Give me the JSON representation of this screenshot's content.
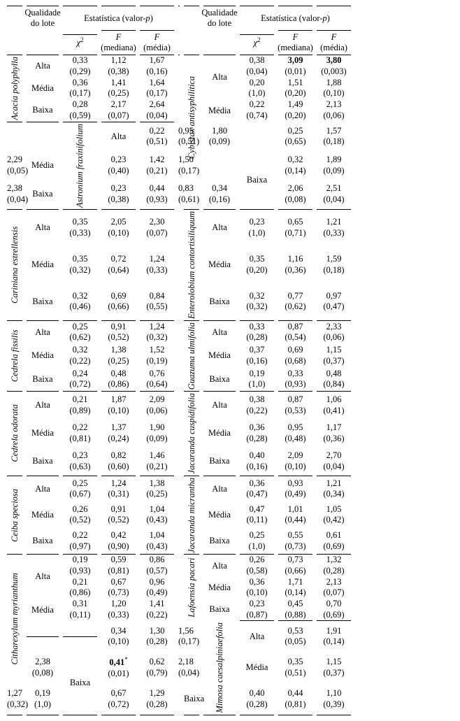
{
  "headers": {
    "qualidade": "Qualidade",
    "do_lote": "do lote",
    "estatistica": "Estatística (valor-",
    "p_it": "p",
    "close": ")",
    "chi": "χ",
    "sq": "2",
    "f": "F",
    "mediana": "(mediana)",
    "media": "(média)"
  },
  "qual_labels": {
    "alta": "Alta",
    "media": "Média",
    "baixa": "Baixa"
  },
  "left": [
    {
      "name": "Acacia polyphylla",
      "rows": [
        [
          "0,33",
          "(0,29)",
          "1,12",
          "(0,38)",
          "1,67",
          "(0,16)"
        ],
        [
          "0,36",
          "(0,17)",
          "1,41",
          "(0,25)",
          "1,64",
          "(0,17)"
        ],
        [
          "0,28",
          "(0,59)",
          "2,17",
          "(0,07)",
          "2,64",
          "(0,04)"
        ]
      ]
    },
    {
      "name": "Astronium fraxinifolium",
      "rows": [
        [
          "0,22",
          "(0,51)",
          "0,95",
          "(0,51)",
          "1,80",
          "(0,09)"
        ],
        [
          "0,23",
          "(0,40)",
          "1,42",
          "(0,21)",
          "1,50",
          "(0,17)"
        ],
        [
          "0,23",
          "(0,38)",
          "0,44",
          "(0,93)",
          "0,83",
          "(0,61)"
        ]
      ]
    },
    {
      "name": "Cariniana estrellensis",
      "rows": [
        [
          "0,35",
          "(0,33)",
          "2,05",
          "(0,10)",
          "2,30",
          "(0,07)"
        ],
        [
          "0,35",
          "(0,32)",
          "0,72",
          "(0,64)",
          "1,24",
          "(0,33)"
        ],
        [
          "0,32",
          "(0,46)",
          "0,69",
          "(0,66)",
          "0,84",
          "(0,55)"
        ]
      ]
    },
    {
      "name": "Cedrela fissilis",
      "rows": [
        [
          "0,25",
          "(0,62)",
          "0,91",
          "(0,52)",
          "1,24",
          "(0,32)"
        ],
        [
          "0,32",
          "(0,22)",
          "1,38",
          "(0,25)",
          "1,52",
          "(0,19)"
        ],
        [
          "0,24",
          "(0,72)",
          "0,48",
          "(0,86)",
          "0,76",
          "(0,64)"
        ]
      ]
    },
    {
      "name": "Cedrela odorata",
      "rows": [
        [
          "0,21",
          "(0,89)",
          "1,87",
          "(0,10)",
          "2,09",
          "(0,06)"
        ],
        [
          "0,22",
          "(0,81)",
          "1,37",
          "(0,24)",
          "1,90",
          "(0,09)"
        ],
        [
          "0,23",
          "(0,63)",
          "0,82",
          "(0,60)",
          "1,46",
          "(0,21)"
        ]
      ]
    },
    {
      "name": "Ceiba speciosa",
      "rows": [
        [
          "0,25",
          "(0,67)",
          "1,24",
          "(0,31)",
          "1,38",
          "(0,25)"
        ],
        [
          "0,26",
          "(0,52)",
          "0,91",
          "(0,52)",
          "1,04",
          "(0,43)"
        ],
        [
          "0,22",
          "(0,97)",
          "0,42",
          "(0,90)",
          "1,04",
          "(0,43)"
        ]
      ]
    },
    {
      "name": "Citharexylum myrianthum",
      "rows6": [
        [
          "0,19",
          "(0,93)",
          "0,59",
          "(0,81)",
          "0,86",
          "(0,57)"
        ],
        [
          "0,21",
          "(0,86)",
          "0,67",
          "(0,73)",
          "0,96",
          "(0,49)"
        ],
        [
          "0,31",
          "(0,11)",
          "1,20",
          "(0,33)",
          "1,41",
          "(0,22)"
        ],
        [
          "0,34",
          "(0,10)",
          "1,30",
          "(0,28)",
          "1,56",
          "(0,17)"
        ],
        [
          "0,41",
          "(0,01)",
          "0,62",
          "(0,79)",
          "2,18",
          "(0,04)"
        ],
        [
          "0,19",
          "(1,0)",
          "0,67",
          "(0,72)",
          "1,29",
          "(0,28)"
        ]
      ],
      "star": "*",
      "bold_first_of_row5": true
    }
  ],
  "right": [
    {
      "name": "Cybistax antisyphilitica",
      "rows6": [
        [
          "0,38",
          "(0,04)",
          "3,09",
          "(0,01)",
          "3,80",
          "(0,003)"
        ],
        [
          "0,20",
          "(1,0)",
          "1,51",
          "(0,20)",
          "1,88",
          "(0,10)"
        ],
        [
          "0,22",
          "(0,74)",
          "1,49",
          "(0,20)",
          "2,13",
          "(0,06)"
        ],
        [
          "0,25",
          "(0,65)",
          "1,57",
          "(0,18)",
          "2,29",
          "(0,05)"
        ],
        [
          "0,32",
          "(0,14)",
          "1,89",
          "(0,09)",
          "2,38",
          "(0,04)"
        ],
        [
          "0,34",
          "(0,16)",
          "2,06",
          "(0,08)",
          "2,51",
          "(0,04)"
        ]
      ],
      "bold_r0_c2": true,
      "bold_r0_c4": true
    },
    {
      "name": "Enterolobium contortisiliquum",
      "rows": [
        [
          "0,23",
          "(1,0)",
          "0,65",
          "(0,71)",
          "1,21",
          "(0,33)"
        ],
        [
          "0,35",
          "(0,20)",
          "1,16",
          "(0,36)",
          "1,59",
          "(0,18)"
        ],
        [
          "0,32",
          "(0,32)",
          "0,77",
          "(0,62)",
          "0,97",
          "(0,47)"
        ]
      ]
    },
    {
      "name": "Guazuma ulmifolia",
      "rows": [
        [
          "0,33",
          "(0,28)",
          "0,87",
          "(0,54)",
          "2,33",
          "(0,06)"
        ],
        [
          "0,37",
          "(0,16)",
          "0,69",
          "(0,68)",
          "1,15",
          "(0,37)"
        ],
        [
          "0,19",
          "(1,0)",
          "0,33",
          "(0,93)",
          "0,48",
          "(0,84)"
        ]
      ]
    },
    {
      "name": "Jacaranda cuspidifolia",
      "rows": [
        [
          "0,38",
          "(0,22)",
          "0,87",
          "(0,53)",
          "1,06",
          "(0,41)"
        ],
        [
          "0,36",
          "(0,28)",
          "0,95",
          "(0,48)",
          "1,17",
          "(0,36)"
        ],
        [
          "0,40",
          "(0,16)",
          "2,09",
          "(0,10)",
          "2,70",
          "(0,04)"
        ]
      ]
    },
    {
      "name": "Jacaranda micrantha",
      "rows": [
        [
          "0,36",
          "(0,47)",
          "0,93",
          "(0,49)",
          "1,21",
          "(0,34)"
        ],
        [
          "0,47",
          "(0,11)",
          "1,01",
          "(0,44)",
          "1,05",
          "(0,42)"
        ],
        [
          "0,25",
          "(1,0)",
          "0,55",
          "(0,73)",
          "0,61",
          "(0,69)"
        ]
      ]
    },
    {
      "name": "Lafoensia pacari",
      "rows": [
        [
          "0,26",
          "(0,58)",
          "0,73",
          "(0,66)",
          "1,32",
          "(0,28)"
        ],
        [
          "0,36",
          "(0,10)",
          "1,71",
          "(0,14)",
          "2,13",
          "(0,07)"
        ],
        [
          "0,23",
          "(0,87)",
          "0,45",
          "(0,88)",
          "0,70",
          "(0,69)"
        ]
      ]
    },
    {
      "name": "Mimosa caesalpiniaefolia",
      "rows": [
        [
          "0,53",
          "(0,05)",
          "1,91",
          "(0,14)",
          "2,38",
          "(0,08)"
        ],
        [
          "0,35",
          "(0,51)",
          "1,15",
          "(0,37)",
          "1,27",
          "(0,32)"
        ],
        [
          "0,40",
          "(0,28)",
          "0,44",
          "(0,81)",
          "1,10",
          "(0,39)"
        ]
      ]
    }
  ]
}
